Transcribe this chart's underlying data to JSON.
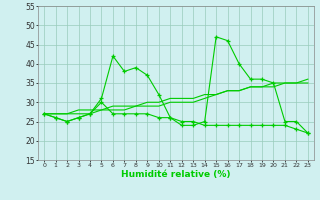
{
  "x": [
    0,
    1,
    2,
    3,
    4,
    5,
    6,
    7,
    8,
    9,
    10,
    11,
    12,
    13,
    14,
    15,
    16,
    17,
    18,
    19,
    20,
    21,
    22,
    23
  ],
  "series1": [
    27,
    26,
    25,
    26,
    27,
    31,
    42,
    38,
    39,
    37,
    32,
    26,
    24,
    24,
    25,
    47,
    46,
    40,
    36,
    36,
    35,
    25,
    25,
    22
  ],
  "series2": [
    27,
    26,
    25,
    26,
    27,
    30,
    27,
    27,
    27,
    27,
    26,
    26,
    25,
    25,
    24,
    24,
    24,
    24,
    24,
    24,
    24,
    24,
    23,
    22
  ],
  "series3": [
    27,
    27,
    27,
    27,
    27,
    28,
    28,
    28,
    29,
    29,
    29,
    30,
    30,
    30,
    31,
    32,
    33,
    33,
    34,
    34,
    35,
    35,
    35,
    35
  ],
  "series4": [
    27,
    27,
    27,
    28,
    28,
    28,
    29,
    29,
    29,
    30,
    30,
    31,
    31,
    31,
    32,
    32,
    33,
    33,
    34,
    34,
    34,
    35,
    35,
    36
  ],
  "line_color": "#00cc00",
  "bg_color": "#d0f0f0",
  "grid_color": "#99ccbb",
  "xlabel": "Humidité relative (%)",
  "ylim": [
    15,
    55
  ],
  "xlim": [
    -0.5,
    23.5
  ],
  "yticks": [
    15,
    20,
    25,
    30,
    35,
    40,
    45,
    50,
    55
  ],
  "xticks": [
    0,
    1,
    2,
    3,
    4,
    5,
    6,
    7,
    8,
    9,
    10,
    11,
    12,
    13,
    14,
    15,
    16,
    17,
    18,
    19,
    20,
    21,
    22,
    23
  ]
}
